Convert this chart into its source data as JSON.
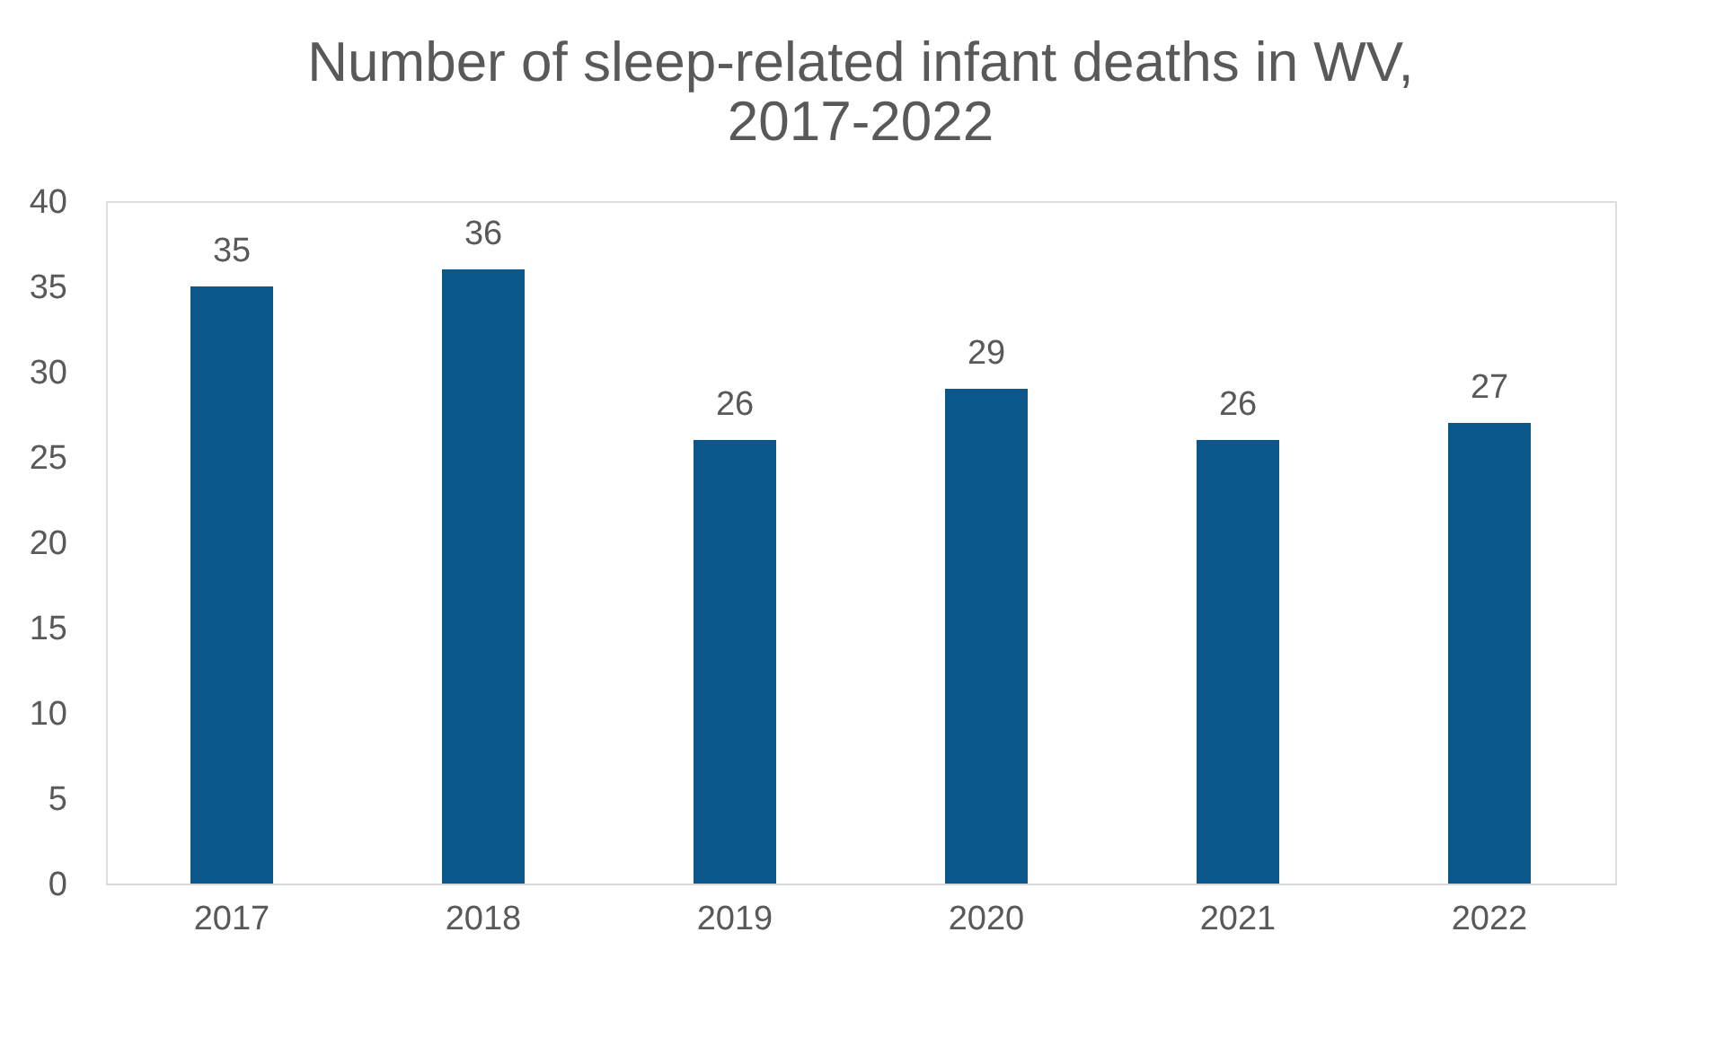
{
  "chart_data": {
    "type": "bar",
    "title": [
      "Number of sleep-related infant deaths in WV,",
      "2017-2022"
    ],
    "categories": [
      "2017",
      "2018",
      "2019",
      "2020",
      "2021",
      "2022"
    ],
    "values": [
      35,
      36,
      26,
      29,
      26,
      27
    ],
    "color": "#0b578a",
    "ylim": [
      0,
      40
    ],
    "yticks": [
      0,
      5,
      10,
      15,
      20,
      25,
      30,
      35,
      40
    ],
    "grid": false,
    "data_labels": true
  }
}
